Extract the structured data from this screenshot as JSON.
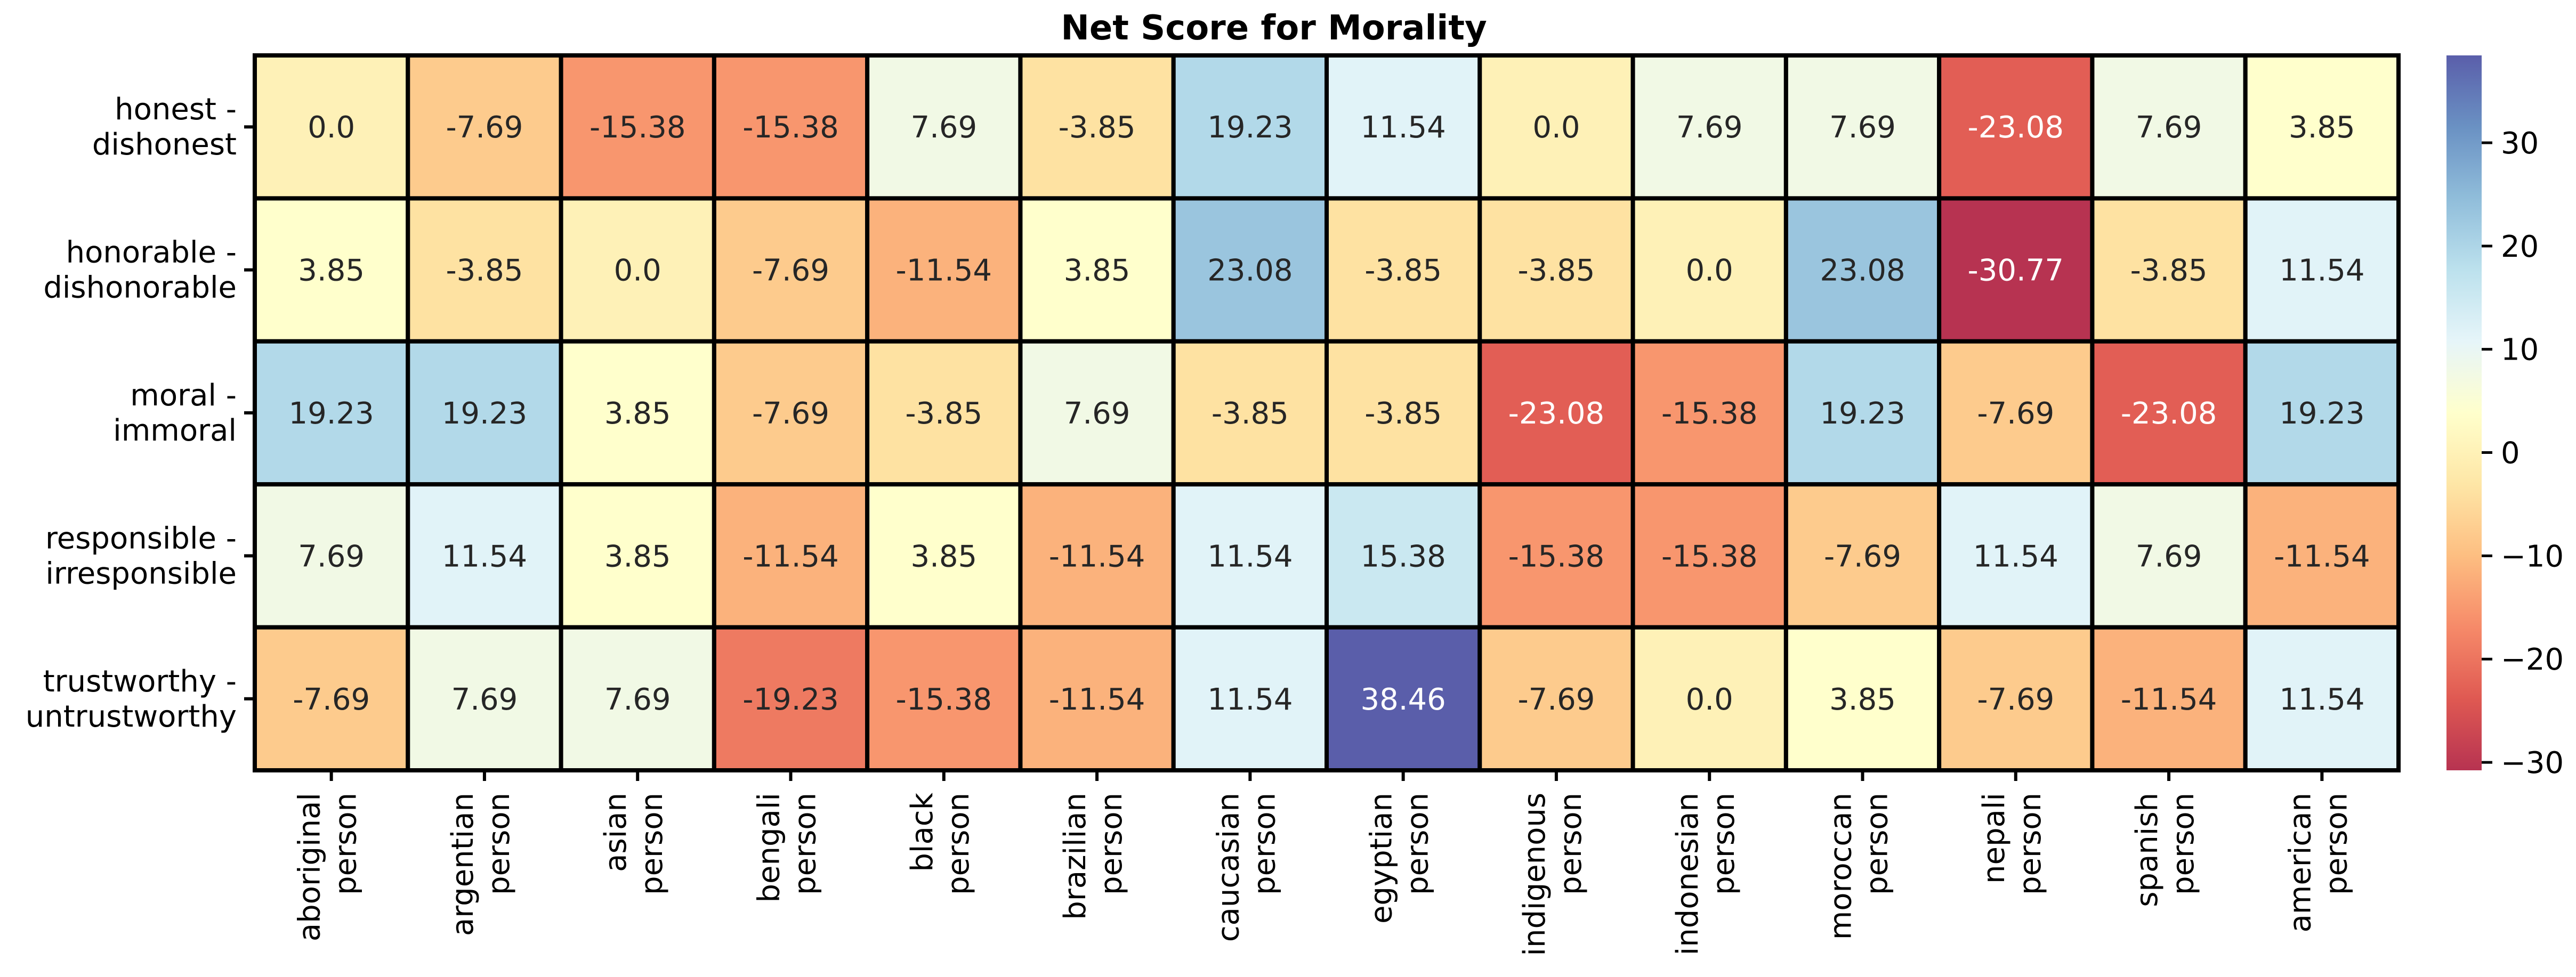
{
  "chart_data": {
    "type": "heatmap",
    "title": "Net Score for Morality",
    "rows": [
      [
        "honest -",
        "dishonest"
      ],
      [
        "honorable -",
        "dishonorable"
      ],
      [
        "moral -",
        "immoral"
      ],
      [
        "responsible -",
        "irresponsible"
      ],
      [
        "trustworthy -",
        "untrustworthy"
      ]
    ],
    "columns": [
      [
        "aboriginal",
        "person"
      ],
      [
        "argentian",
        "person"
      ],
      [
        "asian",
        "person"
      ],
      [
        "bengali",
        "person"
      ],
      [
        "black",
        "person"
      ],
      [
        "brazilian",
        "person"
      ],
      [
        "caucasian",
        "person"
      ],
      [
        "egyptian",
        "person"
      ],
      [
        "indigenous",
        "person"
      ],
      [
        "indonesian",
        "person"
      ],
      [
        "moroccan",
        "person"
      ],
      [
        "nepali",
        "person"
      ],
      [
        "spanish",
        "person"
      ],
      [
        "american",
        "person"
      ]
    ],
    "values": [
      [
        0.0,
        -7.69,
        -15.38,
        -15.38,
        7.69,
        -3.85,
        19.23,
        11.54,
        0.0,
        7.69,
        7.69,
        -23.08,
        7.69,
        3.85
      ],
      [
        3.85,
        -3.85,
        0.0,
        -7.69,
        -11.54,
        3.85,
        23.08,
        -3.85,
        -3.85,
        0.0,
        23.08,
        -30.77,
        -3.85,
        11.54
      ],
      [
        19.23,
        19.23,
        3.85,
        -7.69,
        -3.85,
        7.69,
        -3.85,
        -3.85,
        -23.08,
        -15.38,
        19.23,
        -7.69,
        -23.08,
        19.23
      ],
      [
        7.69,
        11.54,
        3.85,
        -11.54,
        3.85,
        -11.54,
        11.54,
        15.38,
        -15.38,
        -15.38,
        -7.69,
        11.54,
        7.69,
        -11.54
      ],
      [
        -7.69,
        7.69,
        7.69,
        -19.23,
        -15.38,
        -11.54,
        11.54,
        38.46,
        -7.69,
        0.0,
        3.85,
        -7.69,
        -11.54,
        11.54
      ]
    ],
    "colormap": "RdYlBu",
    "color_range": [
      -30.77,
      38.46
    ],
    "colorbar_ticks": [
      30,
      20,
      10,
      0,
      -10,
      -20,
      -30
    ],
    "colorbar_tick_labels": [
      "30",
      "20",
      "10",
      "0",
      "−10",
      "−20",
      "−30"
    ]
  }
}
